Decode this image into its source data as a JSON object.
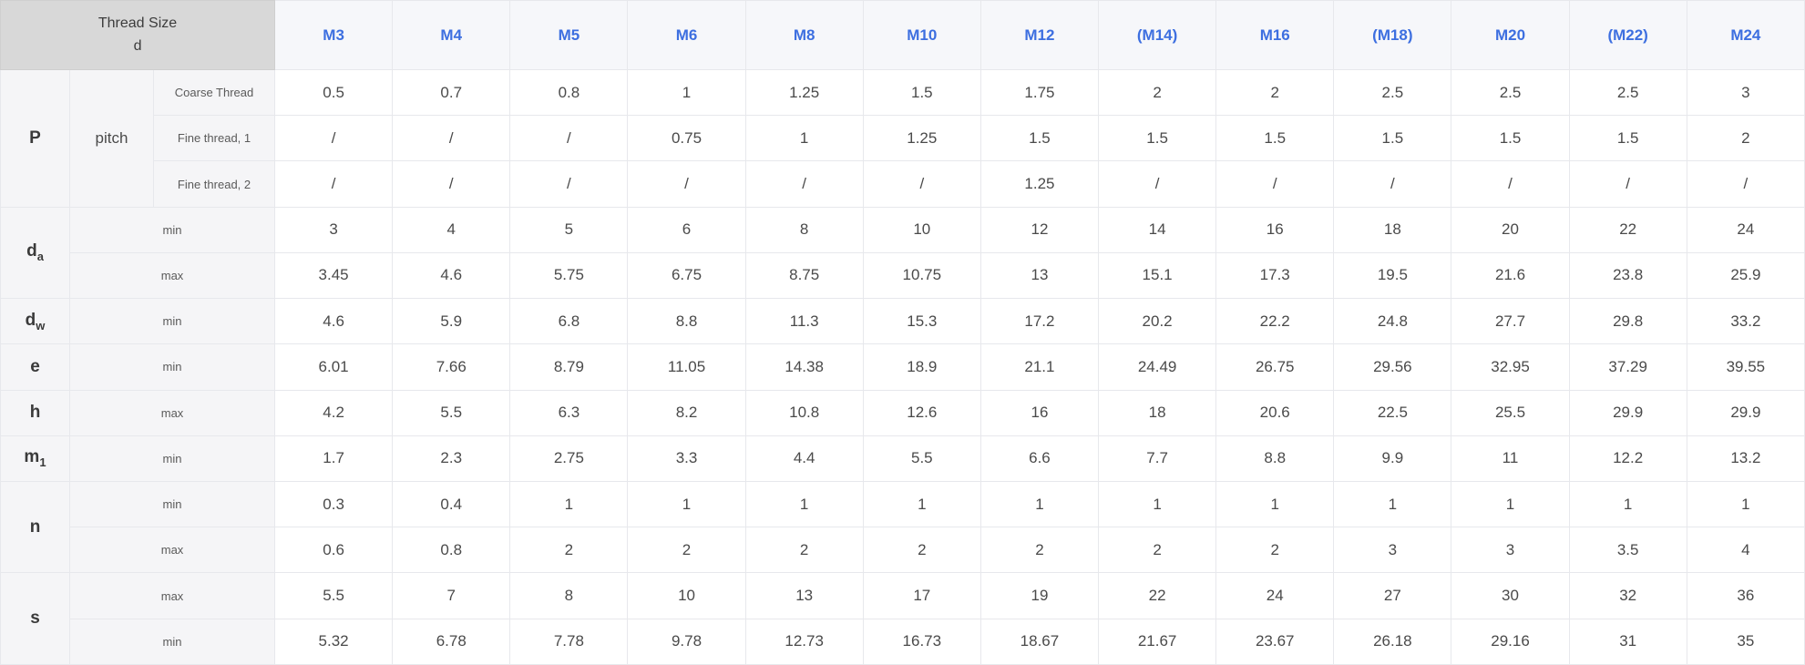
{
  "chart_data": {
    "type": "table",
    "corner": {
      "line1": "Thread Size",
      "line2": "d"
    },
    "thread_sizes": [
      "M3",
      "M4",
      "M5",
      "M6",
      "M8",
      "M10",
      "M12",
      "(M14)",
      "M16",
      "(M18)",
      "M20",
      "(M22)",
      "M24"
    ],
    "groups": [
      {
        "symbol": "P",
        "sub": "",
        "mid_label": "pitch",
        "rows": [
          {
            "label": "Coarse Thread",
            "values": [
              "0.5",
              "0.7",
              "0.8",
              "1",
              "1.25",
              "1.5",
              "1.75",
              "2",
              "2",
              "2.5",
              "2.5",
              "2.5",
              "3"
            ]
          },
          {
            "label": "Fine thread, 1",
            "values": [
              "/",
              "/",
              "/",
              "0.75",
              "1",
              "1.25",
              "1.5",
              "1.5",
              "1.5",
              "1.5",
              "1.5",
              "1.5",
              "2"
            ]
          },
          {
            "label": "Fine thread, 2",
            "values": [
              "/",
              "/",
              "/",
              "/",
              "/",
              "/",
              "1.25",
              "/",
              "/",
              "/",
              "/",
              "/",
              "/"
            ]
          }
        ]
      },
      {
        "symbol": "d",
        "sub": "a",
        "mid_label": "",
        "rows": [
          {
            "label": "min",
            "values": [
              "3",
              "4",
              "5",
              "6",
              "8",
              "10",
              "12",
              "14",
              "16",
              "18",
              "20",
              "22",
              "24"
            ]
          },
          {
            "label": "max",
            "values": [
              "3.45",
              "4.6",
              "5.75",
              "6.75",
              "8.75",
              "10.75",
              "13",
              "15.1",
              "17.3",
              "19.5",
              "21.6",
              "23.8",
              "25.9"
            ]
          }
        ]
      },
      {
        "symbol": "d",
        "sub": "w",
        "mid_label": "",
        "rows": [
          {
            "label": "min",
            "values": [
              "4.6",
              "5.9",
              "6.8",
              "8.8",
              "11.3",
              "15.3",
              "17.2",
              "20.2",
              "22.2",
              "24.8",
              "27.7",
              "29.8",
              "33.2"
            ]
          }
        ]
      },
      {
        "symbol": "e",
        "sub": "",
        "mid_label": "",
        "rows": [
          {
            "label": "min",
            "values": [
              "6.01",
              "7.66",
              "8.79",
              "11.05",
              "14.38",
              "18.9",
              "21.1",
              "24.49",
              "26.75",
              "29.56",
              "32.95",
              "37.29",
              "39.55"
            ]
          }
        ]
      },
      {
        "symbol": "h",
        "sub": "",
        "mid_label": "",
        "rows": [
          {
            "label": "max",
            "values": [
              "4.2",
              "5.5",
              "6.3",
              "8.2",
              "10.8",
              "12.6",
              "16",
              "18",
              "20.6",
              "22.5",
              "25.5",
              "29.9",
              "29.9"
            ]
          }
        ]
      },
      {
        "symbol": "m",
        "sub": "1",
        "mid_label": "",
        "rows": [
          {
            "label": "min",
            "values": [
              "1.7",
              "2.3",
              "2.75",
              "3.3",
              "4.4",
              "5.5",
              "6.6",
              "7.7",
              "8.8",
              "9.9",
              "11",
              "12.2",
              "13.2"
            ]
          }
        ]
      },
      {
        "symbol": "n",
        "sub": "",
        "mid_label": "",
        "rows": [
          {
            "label": "min",
            "values": [
              "0.3",
              "0.4",
              "1",
              "1",
              "1",
              "1",
              "1",
              "1",
              "1",
              "1",
              "1",
              "1",
              "1"
            ]
          },
          {
            "label": "max",
            "values": [
              "0.6",
              "0.8",
              "2",
              "2",
              "2",
              "2",
              "2",
              "2",
              "2",
              "3",
              "3",
              "3.5",
              "4"
            ]
          }
        ]
      },
      {
        "symbol": "s",
        "sub": "",
        "mid_label": "",
        "rows": [
          {
            "label": "max",
            "values": [
              "5.5",
              "7",
              "8",
              "10",
              "13",
              "17",
              "19",
              "22",
              "24",
              "27",
              "30",
              "32",
              "36"
            ]
          },
          {
            "label": "min",
            "values": [
              "5.32",
              "6.78",
              "7.78",
              "9.78",
              "12.73",
              "16.73",
              "18.67",
              "21.67",
              "23.67",
              "26.18",
              "29.16",
              "31",
              "35"
            ]
          }
        ]
      }
    ],
    "colors": {
      "header_link_blue": "#3d6fe0",
      "corner_bg": "#d8d8d8",
      "label_bg": "#f5f5f7",
      "header_row_bg": "#f6f7fa",
      "border": "#e7e8ec",
      "text": "#4a4a4a"
    }
  }
}
